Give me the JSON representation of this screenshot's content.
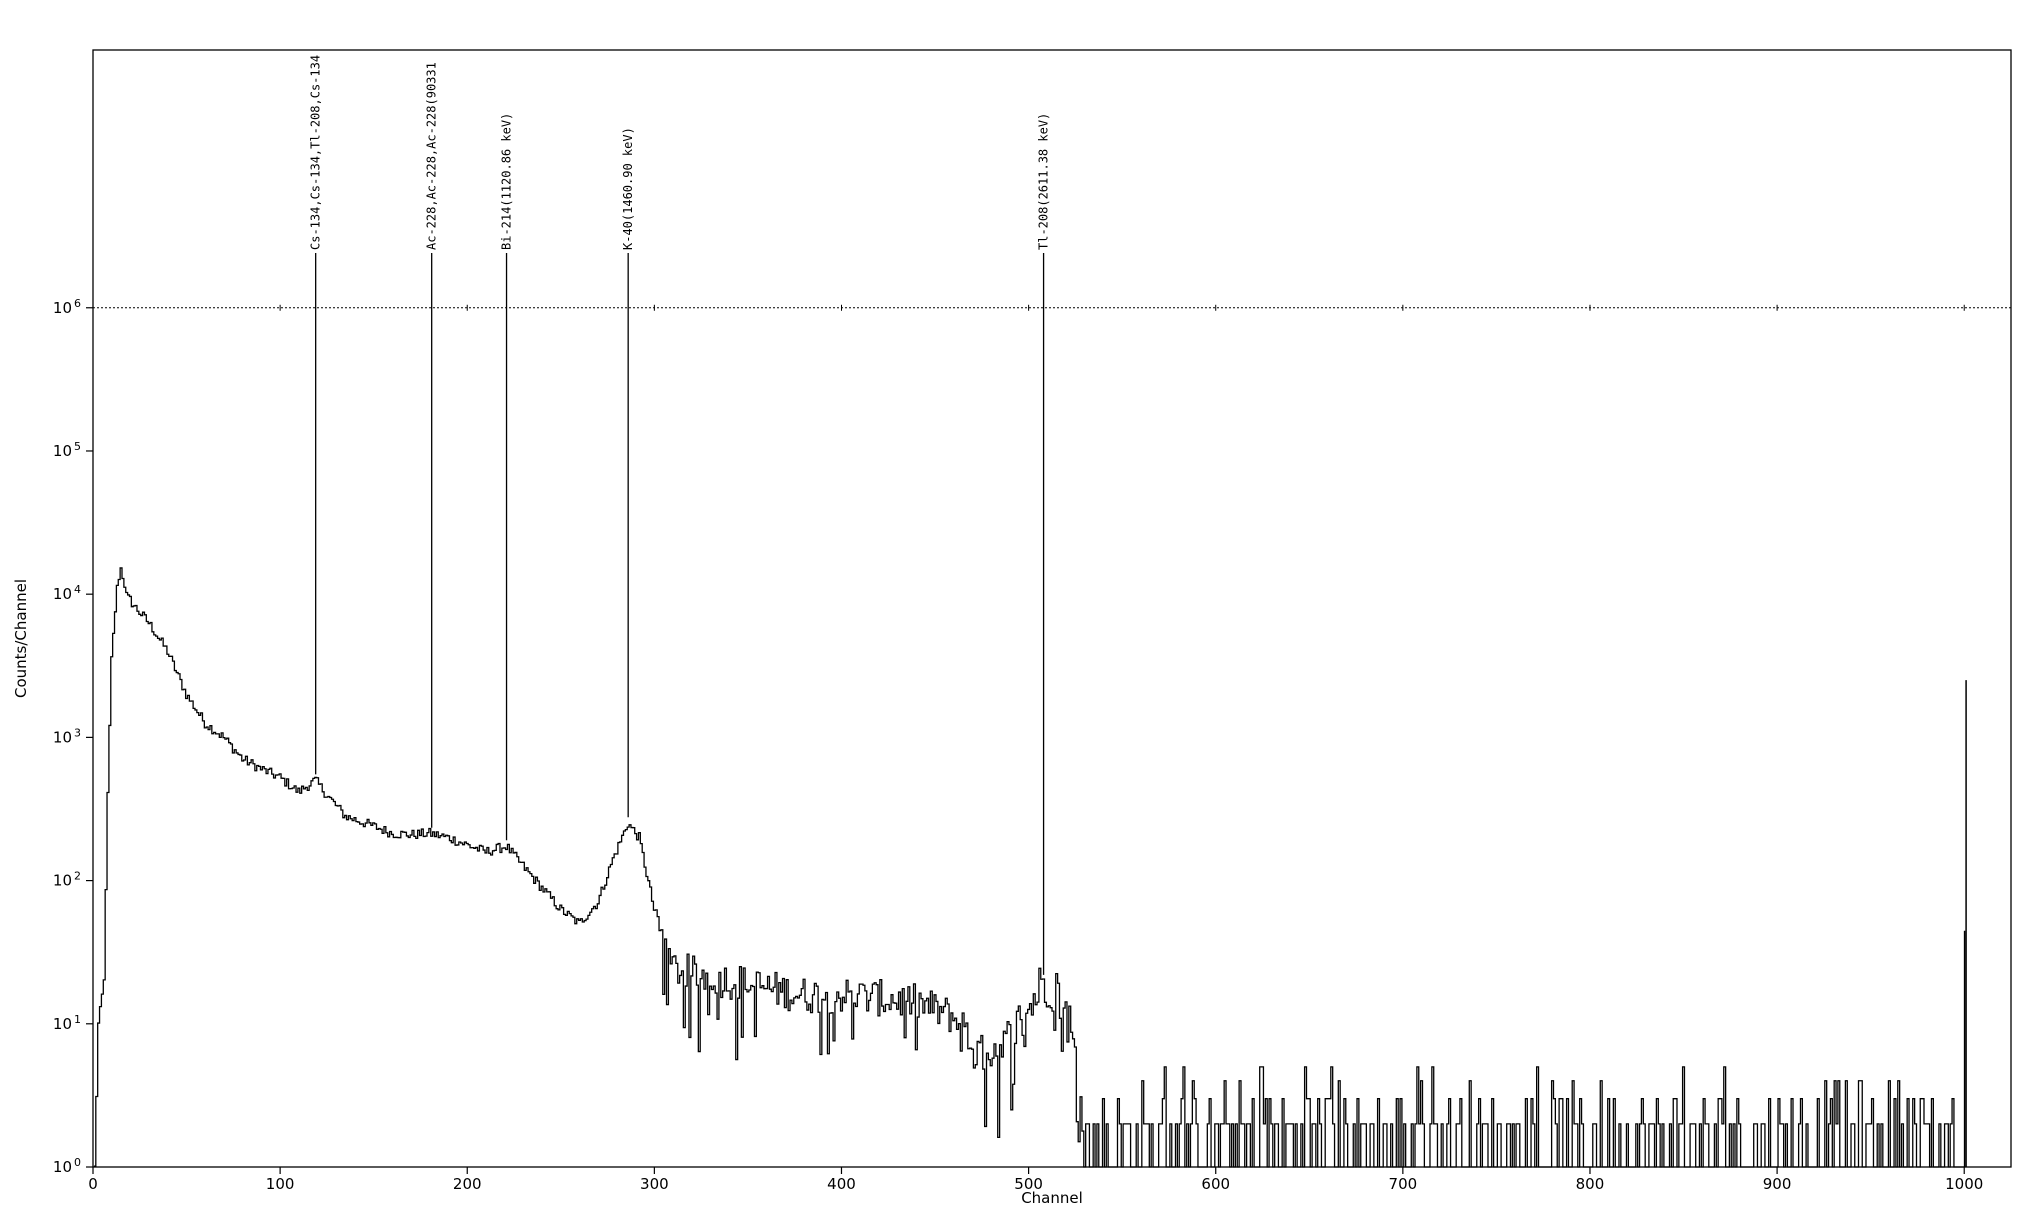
{
  "chart_data": {
    "type": "line",
    "title": "",
    "xlabel": "Channel",
    "ylabel": "Counts/Channel",
    "xlim": [
      0,
      1025
    ],
    "ylim_log10": [
      0,
      7.8
    ],
    "y_scale": "log",
    "grid": false,
    "reference_line": 1000000,
    "x_ticks": [
      0,
      100,
      200,
      300,
      400,
      500,
      600,
      700,
      800,
      900,
      1000
    ],
    "y_ticks": [
      {
        "exp": 0,
        "base": "10",
        "sup": "0"
      },
      {
        "exp": 1,
        "base": "10",
        "sup": "1"
      },
      {
        "exp": 2,
        "base": "10",
        "sup": "2"
      },
      {
        "exp": 3,
        "base": "10",
        "sup": "3"
      },
      {
        "exp": 4,
        "base": "10",
        "sup": "4"
      },
      {
        "exp": 5,
        "base": "10",
        "sup": "5"
      },
      {
        "exp": 6,
        "base": "10",
        "sup": "6"
      }
    ],
    "peak_markers": [
      {
        "channel": 119,
        "label": "Cs-134,Cs-134,Tl-208,Cs-134"
      },
      {
        "channel": 181,
        "label": "Ac-228,Ac-228,Ac-228(90331"
      },
      {
        "channel": 221,
        "label": "Bi-214(1120.86 keV)"
      },
      {
        "channel": 286,
        "label": "K-40(1460.90 keV)"
      },
      {
        "channel": 508,
        "label": "Tl-208(2611.38 keV)"
      }
    ],
    "spectrum_anchors": [
      [
        1,
        0.0
      ],
      [
        3,
        1.0
      ],
      [
        6,
        1.3
      ],
      [
        8,
        2.6
      ],
      [
        10,
        3.55
      ],
      [
        13,
        4.05
      ],
      [
        15,
        4.18
      ],
      [
        18,
        4.0
      ],
      [
        22,
        3.92
      ],
      [
        30,
        3.8
      ],
      [
        40,
        3.6
      ],
      [
        50,
        3.3
      ],
      [
        60,
        3.1
      ],
      [
        70,
        3.0
      ],
      [
        80,
        2.85
      ],
      [
        90,
        2.78
      ],
      [
        100,
        2.72
      ],
      [
        110,
        2.62
      ],
      [
        119,
        2.7
      ],
      [
        125,
        2.6
      ],
      [
        135,
        2.45
      ],
      [
        150,
        2.38
      ],
      [
        160,
        2.33
      ],
      [
        170,
        2.32
      ],
      [
        180,
        2.33
      ],
      [
        190,
        2.3
      ],
      [
        200,
        2.25
      ],
      [
        210,
        2.2
      ],
      [
        221,
        2.24
      ],
      [
        230,
        2.1
      ],
      [
        240,
        1.95
      ],
      [
        250,
        1.8
      ],
      [
        260,
        1.7
      ],
      [
        270,
        1.85
      ],
      [
        278,
        2.15
      ],
      [
        286,
        2.4
      ],
      [
        292,
        2.3
      ],
      [
        300,
        1.8
      ],
      [
        308,
        1.4
      ],
      [
        320,
        1.35
      ],
      [
        340,
        1.3
      ],
      [
        360,
        1.25
      ],
      [
        380,
        1.2
      ],
      [
        400,
        1.2
      ],
      [
        420,
        1.18
      ],
      [
        440,
        1.15
      ],
      [
        460,
        1.05
      ],
      [
        470,
        0.85
      ],
      [
        480,
        0.65
      ],
      [
        490,
        0.9
      ],
      [
        500,
        1.1
      ],
      [
        508,
        1.3
      ],
      [
        515,
        1.25
      ],
      [
        522,
        1.0
      ],
      [
        528,
        0.5
      ],
      [
        533,
        0.1
      ],
      [
        1000,
        0.1
      ]
    ],
    "spike": {
      "channel": 1001,
      "value": 3.4
    }
  }
}
